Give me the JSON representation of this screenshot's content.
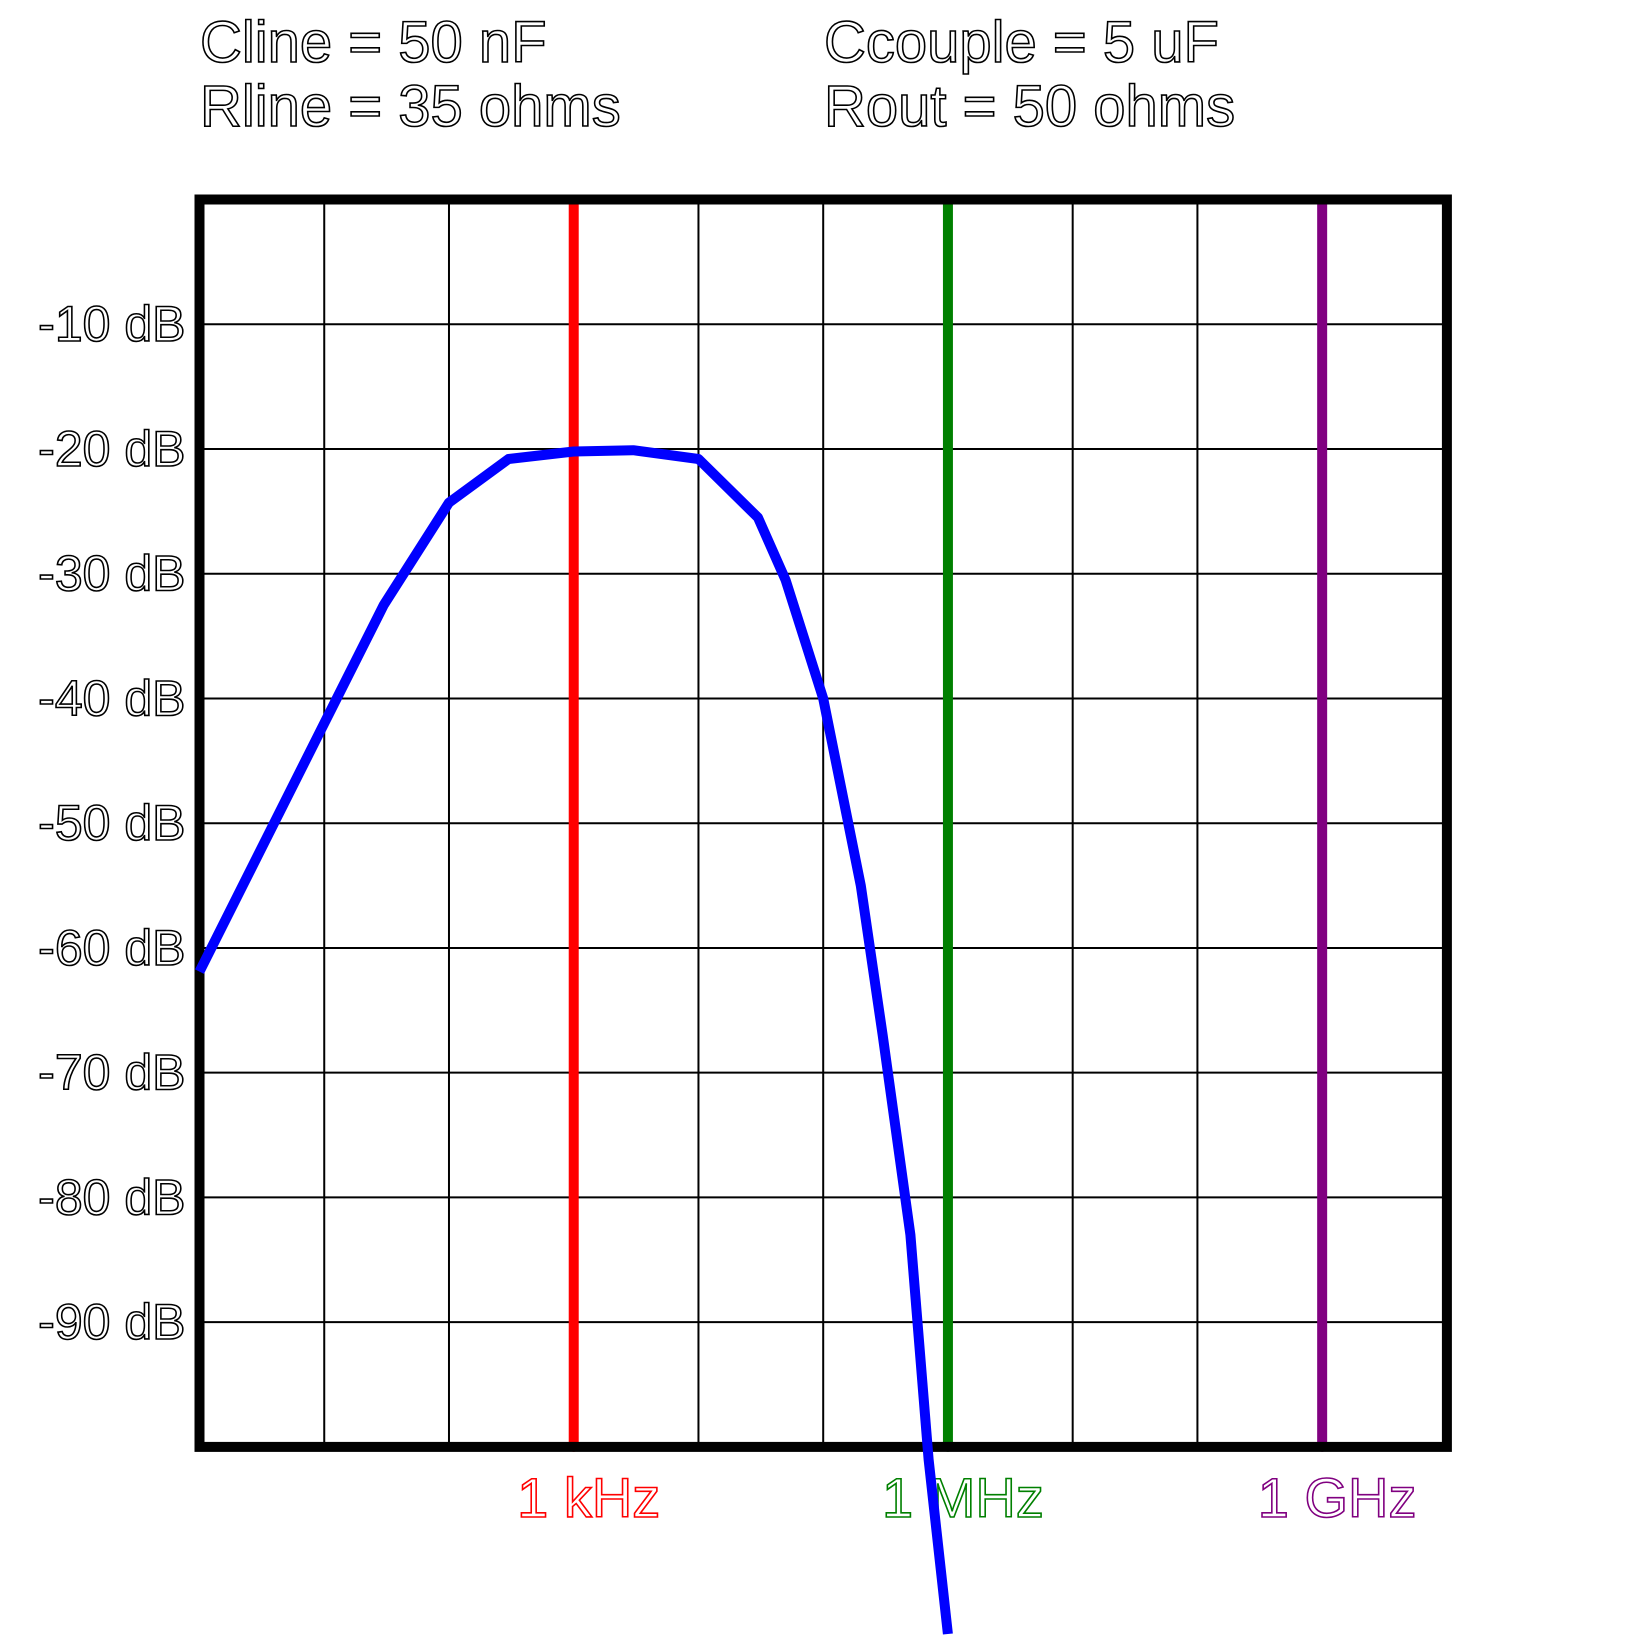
{
  "chart_data": {
    "type": "line",
    "xscale": "log",
    "grid": true,
    "annotations": [
      "Cline = 50 nF",
      "Rline = 35 ohms",
      "Ccouple = 5 uF",
      "Rout = 50 ohms"
    ],
    "x": [
      1,
      3,
      10,
      30,
      100,
      300,
      1000,
      3000,
      10000,
      30000,
      50000,
      100000,
      200000,
      300000,
      500000,
      700000,
      1000000
    ],
    "series": [
      {
        "color": "#0000ff",
        "values": [
          -61.9,
          -52.4,
          -42,
          -32.5,
          -24.3,
          -20.8,
          -20.2,
          -20.1,
          -20.8,
          -25.5,
          -30.5,
          -40,
          -55,
          -67,
          -83,
          -101,
          -115
        ]
      }
    ],
    "xlim": [
      1,
      10000000000
    ],
    "xticks": [
      {
        "value": 1000,
        "label": "1 kHz"
      },
      {
        "value": 1000000,
        "label": "1 MHz"
      },
      {
        "value": 1000000000,
        "label": "1 GHz"
      }
    ],
    "xtick_colors": [
      "#ff0000",
      "#008000",
      "#800080"
    ],
    "ylim": [
      -100,
      0
    ],
    "yticks": [
      {
        "value": -10,
        "label": "-10 dB"
      },
      {
        "value": -20,
        "label": "-20 dB"
      },
      {
        "value": -30,
        "label": "-30 dB"
      },
      {
        "value": -40,
        "label": "-40 dB"
      },
      {
        "value": -50,
        "label": "-50 dB"
      },
      {
        "value": -60,
        "label": "-60 dB"
      },
      {
        "value": -70,
        "label": "-70 dB"
      },
      {
        "value": -80,
        "label": "-80 dB"
      },
      {
        "value": -90,
        "label": "-90 dB"
      }
    ]
  }
}
